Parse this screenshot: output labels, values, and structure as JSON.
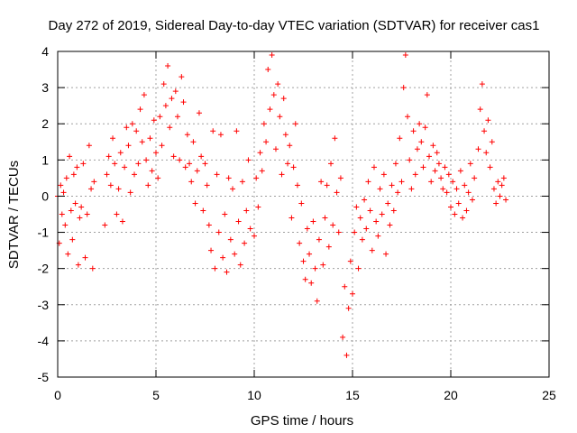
{
  "chart_data": {
    "type": "scatter",
    "title": "Day 272 of 2019, Sidereal Day-to-day VTEC variation (SDTVAR) for receiver cas1",
    "xlabel": "GPS time / hours",
    "ylabel": "SDTVAR / TECUs",
    "xlim": [
      0,
      25
    ],
    "ylim": [
      -5,
      4
    ],
    "xticks": [
      0,
      5,
      10,
      15,
      20,
      25
    ],
    "yticks": [
      -5,
      -4,
      -3,
      -2,
      -1,
      0,
      1,
      2,
      3,
      4
    ],
    "grid": true,
    "marker": "+",
    "series": [
      {
        "name": "cas1",
        "color": "#ff0000",
        "x": [
          0.0,
          0.08,
          0.15,
          0.22,
          0.3,
          0.38,
          0.45,
          0.52,
          0.6,
          0.68,
          0.75,
          0.82,
          0.9,
          0.98,
          1.05,
          1.12,
          1.2,
          1.3,
          1.4,
          1.5,
          1.6,
          1.7,
          1.78,
          1.85,
          2.4,
          2.5,
          2.6,
          2.7,
          2.8,
          2.9,
          3.0,
          3.1,
          3.2,
          3.3,
          3.4,
          3.5,
          3.6,
          3.7,
          3.8,
          3.9,
          4.0,
          4.1,
          4.2,
          4.3,
          4.4,
          4.5,
          4.6,
          4.7,
          4.8,
          4.9,
          5.0,
          5.1,
          5.2,
          5.3,
          5.4,
          5.5,
          5.6,
          5.7,
          5.8,
          5.9,
          6.0,
          6.1,
          6.2,
          6.3,
          6.4,
          6.5,
          6.6,
          6.7,
          6.8,
          6.9,
          7.0,
          7.1,
          7.2,
          7.3,
          7.4,
          7.5,
          7.6,
          7.7,
          7.8,
          7.9,
          8.0,
          8.1,
          8.2,
          8.3,
          8.4,
          8.5,
          8.6,
          8.7,
          8.8,
          8.9,
          9.0,
          9.1,
          9.2,
          9.3,
          9.4,
          9.5,
          9.6,
          9.7,
          9.8,
          10.0,
          10.1,
          10.2,
          10.3,
          10.4,
          10.5,
          10.6,
          10.7,
          10.8,
          10.9,
          11.0,
          11.1,
          11.2,
          11.3,
          11.4,
          11.5,
          11.6,
          11.7,
          11.8,
          11.9,
          12.0,
          12.1,
          12.2,
          12.3,
          12.4,
          12.5,
          12.6,
          12.7,
          12.8,
          12.9,
          13.0,
          13.1,
          13.2,
          13.3,
          13.4,
          13.5,
          13.6,
          13.7,
          13.8,
          13.9,
          14.0,
          14.1,
          14.2,
          14.3,
          14.4,
          14.5,
          14.6,
          14.7,
          14.8,
          14.9,
          15.0,
          15.1,
          15.2,
          15.3,
          15.4,
          15.5,
          15.6,
          15.7,
          15.8,
          15.9,
          16.0,
          16.1,
          16.2,
          16.3,
          16.4,
          16.5,
          16.6,
          16.7,
          16.8,
          16.9,
          17.0,
          17.1,
          17.2,
          17.3,
          17.4,
          17.5,
          17.6,
          17.7,
          17.8,
          17.9,
          18.0,
          18.1,
          18.2,
          18.3,
          18.4,
          18.5,
          18.6,
          18.7,
          18.8,
          18.9,
          19.0,
          19.1,
          19.2,
          19.3,
          19.4,
          19.5,
          19.6,
          19.7,
          19.8,
          19.9,
          20.0,
          20.1,
          20.2,
          20.3,
          20.4,
          20.5,
          20.6,
          20.7,
          20.8,
          20.9,
          21.0,
          21.1,
          21.2,
          21.4,
          21.5,
          21.6,
          21.7,
          21.8,
          21.9,
          22.0,
          22.1,
          22.2,
          22.3,
          22.4,
          22.5,
          22.6,
          22.7,
          22.8
        ],
        "y": [
          0.0,
          -1.3,
          0.3,
          -0.5,
          0.1,
          -0.8,
          0.5,
          -1.6,
          1.1,
          -0.4,
          -1.2,
          0.6,
          -0.2,
          0.8,
          -1.9,
          -0.6,
          -0.3,
          0.9,
          -1.7,
          -0.5,
          1.4,
          0.2,
          -2.0,
          0.4,
          -0.8,
          0.6,
          1.1,
          0.3,
          1.6,
          0.9,
          -0.5,
          0.2,
          1.2,
          -0.7,
          0.8,
          1.9,
          1.4,
          0.1,
          2.0,
          0.6,
          1.8,
          0.9,
          2.4,
          1.5,
          2.8,
          1.0,
          0.3,
          1.6,
          0.7,
          2.1,
          1.2,
          0.5,
          2.2,
          1.4,
          3.1,
          2.5,
          3.6,
          1.9,
          2.7,
          1.1,
          2.9,
          2.2,
          1.0,
          3.3,
          2.6,
          0.8,
          1.7,
          0.9,
          0.4,
          1.5,
          -0.2,
          0.7,
          2.3,
          1.1,
          -0.4,
          0.9,
          0.3,
          -0.8,
          -1.5,
          1.8,
          -2.0,
          0.6,
          -1.0,
          1.7,
          -1.7,
          -0.5,
          -2.1,
          0.5,
          -1.2,
          0.2,
          -1.6,
          1.8,
          -0.7,
          -1.9,
          0.4,
          -1.3,
          -0.4,
          1.0,
          -0.9,
          -1.1,
          0.5,
          -0.3,
          1.2,
          0.7,
          2.0,
          1.5,
          3.5,
          2.4,
          3.9,
          2.8,
          1.3,
          3.1,
          2.2,
          0.6,
          2.7,
          1.7,
          0.9,
          1.4,
          -0.6,
          0.8,
          2.0,
          0.3,
          -1.3,
          -0.2,
          -1.8,
          -2.3,
          -0.9,
          -1.6,
          -2.4,
          -0.7,
          -2.0,
          -2.9,
          -1.2,
          0.4,
          -1.9,
          -0.6,
          0.3,
          -1.4,
          0.9,
          -0.8,
          1.6,
          0.1,
          -1.0,
          0.5,
          -3.9,
          -2.5,
          -4.4,
          -3.1,
          -1.8,
          -2.7,
          -1.0,
          -0.3,
          -2.0,
          -0.6,
          -1.2,
          -0.1,
          -0.9,
          0.4,
          -0.4,
          -1.5,
          0.8,
          -0.7,
          -1.1,
          0.2,
          -0.5,
          0.6,
          -1.6,
          -0.2,
          -0.8,
          0.3,
          -0.4,
          0.9,
          0.1,
          1.6,
          0.4,
          3.0,
          3.9,
          2.2,
          1.0,
          0.2,
          1.8,
          0.6,
          1.3,
          2.0,
          1.5,
          0.8,
          1.9,
          2.8,
          1.1,
          0.4,
          1.4,
          0.7,
          1.2,
          0.9,
          0.5,
          0.2,
          0.8,
          0.1,
          0.6,
          -0.3,
          0.4,
          -0.5,
          0.2,
          -0.2,
          0.7,
          -0.6,
          0.3,
          -0.4,
          0.1,
          0.9,
          -0.1,
          0.5,
          1.3,
          2.4,
          3.1,
          1.8,
          1.2,
          2.1,
          0.8,
          1.5,
          0.2,
          -0.2,
          0.4,
          0.0,
          0.3,
          0.5,
          -0.1
        ]
      }
    ]
  }
}
